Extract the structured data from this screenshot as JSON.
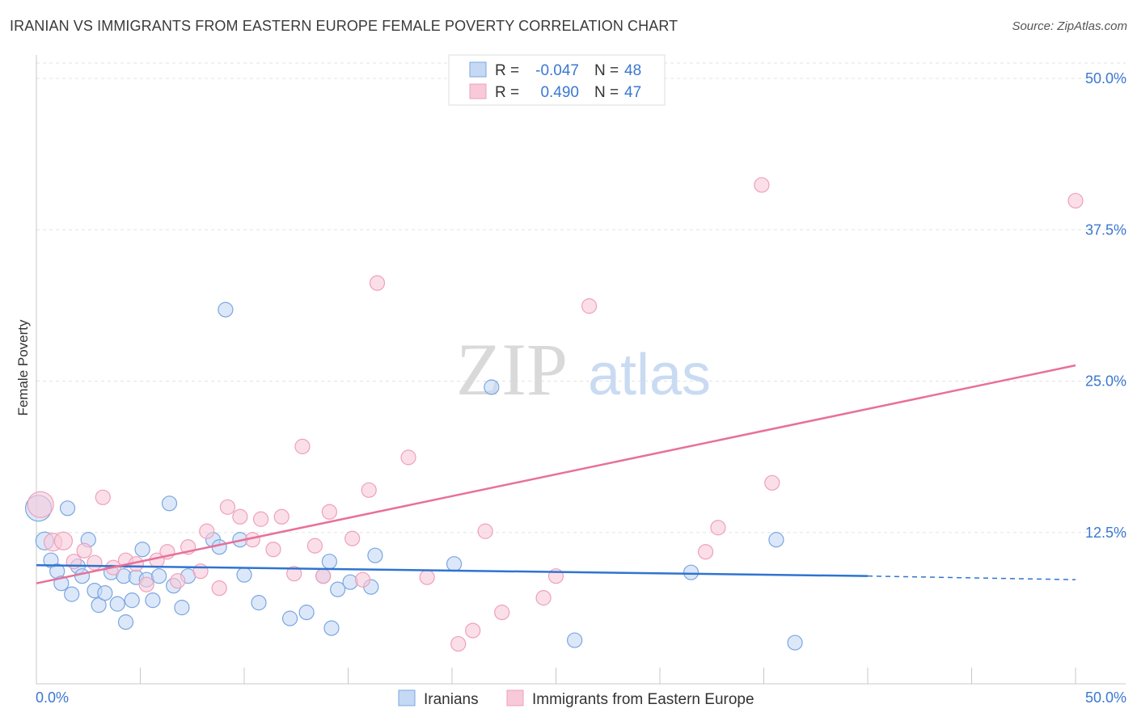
{
  "title": "IRANIAN VS IMMIGRANTS FROM EASTERN EUROPE FEMALE POVERTY CORRELATION CHART",
  "source": "Source: ZipAtlas.com",
  "watermark": {
    "zip": "ZIP",
    "atlas": "atlas"
  },
  "colors": {
    "blue": "#2f74d0",
    "blue_fill": "#c5d9f5",
    "blue_stroke": "#7aa6e0",
    "pink": "#e8709a",
    "pink_fill": "#f8c9d8",
    "pink_stroke": "#eea0bb",
    "tick_label": "#3a78d0",
    "grid": "#e3e3e3"
  },
  "chart_data": {
    "type": "scatter",
    "xlabel": "",
    "ylabel": "Female Poverty",
    "xlim": [
      0,
      50
    ],
    "ylim": [
      0,
      50
    ],
    "x_tick_labels": {
      "left": "0.0%",
      "right": "50.0%"
    },
    "y_ticks": [
      {
        "value": 12.5,
        "label": "12.5%"
      },
      {
        "value": 25.0,
        "label": "25.0%"
      },
      {
        "value": 37.5,
        "label": "37.5%"
      },
      {
        "value": 50.0,
        "label": "50.0%"
      }
    ],
    "legend_top": [
      {
        "series": "Iranians",
        "r_label": "R = ",
        "r_value": "-0.047",
        "n_label": "N = ",
        "n_value": "48"
      },
      {
        "series": "Immigrants from Eastern Europe",
        "r_label": "R = ",
        "r_value": "0.490",
        "n_label": "N = ",
        "n_value": "47"
      }
    ],
    "series": [
      {
        "name": "Iranians",
        "color": "blue",
        "trend": {
          "x0": 0,
          "y0": 9.8,
          "x1": 40,
          "y1": 8.9,
          "dash_to_x": 50,
          "dash_to_y": 8.6
        },
        "points": [
          [
            0.1,
            14.5,
            16
          ],
          [
            1.5,
            14.5,
            9
          ],
          [
            0.4,
            11.8,
            11
          ],
          [
            0.7,
            10.2,
            9
          ],
          [
            1.0,
            9.3,
            9
          ],
          [
            1.2,
            8.3,
            9
          ],
          [
            1.7,
            7.4,
            9
          ],
          [
            2.0,
            9.7,
            9
          ],
          [
            2.2,
            8.9,
            9
          ],
          [
            2.5,
            11.9,
            9
          ],
          [
            2.8,
            7.7,
            9
          ],
          [
            3.0,
            6.5,
            9
          ],
          [
            3.3,
            7.5,
            9
          ],
          [
            3.6,
            9.2,
            9
          ],
          [
            3.9,
            6.6,
            9
          ],
          [
            4.2,
            8.9,
            9
          ],
          [
            4.3,
            5.1,
            9
          ],
          [
            4.6,
            6.9,
            9
          ],
          [
            4.8,
            8.8,
            9
          ],
          [
            5.1,
            11.1,
            9
          ],
          [
            5.3,
            8.6,
            9
          ],
          [
            5.6,
            6.9,
            9
          ],
          [
            5.9,
            8.9,
            9
          ],
          [
            6.4,
            14.9,
            9
          ],
          [
            6.6,
            8.1,
            9
          ],
          [
            7.0,
            6.3,
            9
          ],
          [
            7.3,
            8.9,
            9
          ],
          [
            8.5,
            11.9,
            9
          ],
          [
            8.8,
            11.3,
            9
          ],
          [
            9.1,
            30.9,
            9
          ],
          [
            9.8,
            11.9,
            9
          ],
          [
            10.0,
            9.0,
            9
          ],
          [
            10.7,
            6.7,
            9
          ],
          [
            12.2,
            5.4,
            9
          ],
          [
            13.0,
            5.9,
            9
          ],
          [
            13.8,
            8.9,
            9
          ],
          [
            14.1,
            10.1,
            9
          ],
          [
            14.2,
            4.6,
            9
          ],
          [
            14.5,
            7.8,
            9
          ],
          [
            15.1,
            8.4,
            9
          ],
          [
            16.1,
            8.0,
            9
          ],
          [
            16.3,
            10.6,
            9
          ],
          [
            20.1,
            9.9,
            9
          ],
          [
            21.9,
            24.5,
            9
          ],
          [
            25.9,
            3.6,
            9
          ],
          [
            31.5,
            9.2,
            9
          ],
          [
            35.6,
            11.9,
            9
          ],
          [
            36.5,
            3.4,
            9
          ]
        ]
      },
      {
        "name": "Immigrants from Eastern Europe",
        "color": "pink",
        "trend": {
          "x0": 0,
          "y0": 8.3,
          "x1": 50,
          "y1": 26.3
        },
        "points": [
          [
            0.2,
            14.8,
            16
          ],
          [
            0.8,
            11.7,
            11
          ],
          [
            1.3,
            11.8,
            11
          ],
          [
            1.8,
            10.1,
            9
          ],
          [
            2.3,
            11.0,
            9
          ],
          [
            2.8,
            10.0,
            9
          ],
          [
            3.2,
            15.4,
            9
          ],
          [
            3.7,
            9.6,
            9
          ],
          [
            4.3,
            10.2,
            9
          ],
          [
            4.8,
            9.9,
            9
          ],
          [
            5.3,
            8.2,
            9
          ],
          [
            5.8,
            10.2,
            9
          ],
          [
            6.3,
            10.9,
            9
          ],
          [
            6.8,
            8.5,
            9
          ],
          [
            7.3,
            11.3,
            9
          ],
          [
            7.9,
            9.3,
            9
          ],
          [
            8.2,
            12.6,
            9
          ],
          [
            8.8,
            7.9,
            9
          ],
          [
            9.2,
            14.6,
            9
          ],
          [
            9.8,
            13.8,
            9
          ],
          [
            10.4,
            11.9,
            9
          ],
          [
            10.8,
            13.6,
            9
          ],
          [
            11.4,
            11.1,
            9
          ],
          [
            11.8,
            13.8,
            9
          ],
          [
            12.4,
            9.1,
            9
          ],
          [
            12.8,
            19.6,
            9
          ],
          [
            13.4,
            11.4,
            9
          ],
          [
            13.8,
            8.9,
            9
          ],
          [
            14.1,
            14.2,
            9
          ],
          [
            15.2,
            12.0,
            9
          ],
          [
            15.7,
            8.6,
            9
          ],
          [
            16.0,
            16.0,
            9
          ],
          [
            16.4,
            33.1,
            9
          ],
          [
            17.9,
            18.7,
            9
          ],
          [
            18.8,
            8.8,
            9
          ],
          [
            20.3,
            3.3,
            9
          ],
          [
            21.0,
            4.4,
            9
          ],
          [
            21.6,
            12.6,
            9
          ],
          [
            22.4,
            5.9,
            9
          ],
          [
            24.4,
            7.1,
            9
          ],
          [
            25.0,
            8.9,
            9
          ],
          [
            26.6,
            31.2,
            9
          ],
          [
            32.2,
            10.9,
            9
          ],
          [
            32.8,
            12.9,
            9
          ],
          [
            34.9,
            41.2,
            9
          ],
          [
            35.4,
            16.6,
            9
          ],
          [
            50.0,
            39.9,
            9
          ]
        ]
      }
    ]
  }
}
